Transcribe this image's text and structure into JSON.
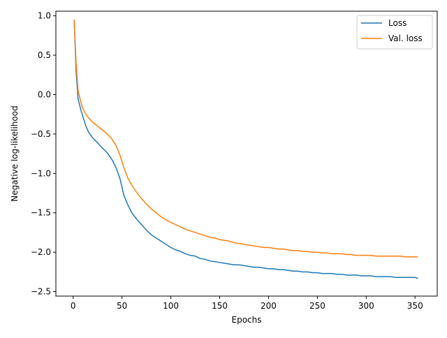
{
  "chart_data": {
    "type": "line",
    "title": "",
    "xlabel": "Epochs",
    "ylabel": "Negative log-likelihood",
    "xlim": [
      -17.7,
      372.7
    ],
    "ylim": [
      -2.557,
      1.059
    ],
    "x_ticks": [
      0,
      50,
      100,
      150,
      200,
      250,
      300,
      350
    ],
    "y_ticks": [
      1.0,
      0.5,
      0.0,
      -0.5,
      -1.0,
      -1.5,
      -2.0,
      -2.5
    ],
    "x_tick_labels": [
      "0",
      "50",
      "100",
      "150",
      "200",
      "250",
      "300",
      "350"
    ],
    "y_tick_labels": [
      "1.0",
      "0.5",
      "0.0",
      "−0.5",
      "−1.0",
      "−1.5",
      "−2.0",
      "−2.5"
    ],
    "grid": false,
    "legend_position": "top-right",
    "series": [
      {
        "name": "Loss",
        "color": "#1f77b4",
        "points": [
          [
            1,
            0.95
          ],
          [
            3,
            0.3
          ],
          [
            5,
            -0.05
          ],
          [
            8,
            -0.2
          ],
          [
            10,
            -0.28
          ],
          [
            13,
            -0.4
          ],
          [
            16,
            -0.48
          ],
          [
            20,
            -0.55
          ],
          [
            25,
            -0.61
          ],
          [
            30,
            -0.68
          ],
          [
            35,
            -0.74
          ],
          [
            40,
            -0.83
          ],
          [
            44,
            -0.93
          ],
          [
            48,
            -1.07
          ],
          [
            52,
            -1.28
          ],
          [
            56,
            -1.4
          ],
          [
            60,
            -1.5
          ],
          [
            65,
            -1.58
          ],
          [
            70,
            -1.65
          ],
          [
            75,
            -1.72
          ],
          [
            80,
            -1.78
          ],
          [
            85,
            -1.82
          ],
          [
            90,
            -1.86
          ],
          [
            95,
            -1.9
          ],
          [
            100,
            -1.94
          ],
          [
            105,
            -1.97
          ],
          [
            110,
            -1.99
          ],
          [
            115,
            -2.02
          ],
          [
            120,
            -2.04
          ],
          [
            125,
            -2.05
          ],
          [
            130,
            -2.08
          ],
          [
            135,
            -2.09
          ],
          [
            140,
            -2.11
          ],
          [
            145,
            -2.12
          ],
          [
            150,
            -2.13
          ],
          [
            155,
            -2.14
          ],
          [
            160,
            -2.15
          ],
          [
            165,
            -2.16
          ],
          [
            170,
            -2.16
          ],
          [
            175,
            -2.17
          ],
          [
            180,
            -2.18
          ],
          [
            185,
            -2.19
          ],
          [
            190,
            -2.19
          ],
          [
            195,
            -2.2
          ],
          [
            200,
            -2.21
          ],
          [
            205,
            -2.21
          ],
          [
            210,
            -2.22
          ],
          [
            215,
            -2.22
          ],
          [
            220,
            -2.23
          ],
          [
            225,
            -2.24
          ],
          [
            230,
            -2.24
          ],
          [
            235,
            -2.25
          ],
          [
            240,
            -2.25
          ],
          [
            245,
            -2.26
          ],
          [
            250,
            -2.26
          ],
          [
            255,
            -2.27
          ],
          [
            260,
            -2.27
          ],
          [
            265,
            -2.27
          ],
          [
            270,
            -2.28
          ],
          [
            275,
            -2.28
          ],
          [
            280,
            -2.29
          ],
          [
            285,
            -2.29
          ],
          [
            290,
            -2.29
          ],
          [
            295,
            -2.3
          ],
          [
            300,
            -2.3
          ],
          [
            305,
            -2.3
          ],
          [
            310,
            -2.31
          ],
          [
            315,
            -2.31
          ],
          [
            320,
            -2.31
          ],
          [
            325,
            -2.31
          ],
          [
            330,
            -2.32
          ],
          [
            335,
            -2.32
          ],
          [
            340,
            -2.32
          ],
          [
            345,
            -2.32
          ],
          [
            350,
            -2.32
          ],
          [
            353,
            -2.33
          ]
        ]
      },
      {
        "name": "Val. loss",
        "color": "#ff7f0e",
        "points": [
          [
            1,
            0.95
          ],
          [
            3,
            0.4
          ],
          [
            5,
            0.05
          ],
          [
            8,
            -0.1
          ],
          [
            10,
            -0.18
          ],
          [
            13,
            -0.25
          ],
          [
            16,
            -0.3
          ],
          [
            20,
            -0.35
          ],
          [
            25,
            -0.4
          ],
          [
            30,
            -0.45
          ],
          [
            35,
            -0.5
          ],
          [
            40,
            -0.57
          ],
          [
            44,
            -0.65
          ],
          [
            48,
            -0.77
          ],
          [
            52,
            -0.93
          ],
          [
            56,
            -1.06
          ],
          [
            60,
            -1.15
          ],
          [
            65,
            -1.24
          ],
          [
            70,
            -1.32
          ],
          [
            75,
            -1.39
          ],
          [
            80,
            -1.45
          ],
          [
            85,
            -1.5
          ],
          [
            90,
            -1.55
          ],
          [
            95,
            -1.59
          ],
          [
            100,
            -1.62
          ],
          [
            105,
            -1.65
          ],
          [
            110,
            -1.68
          ],
          [
            115,
            -1.71
          ],
          [
            120,
            -1.73
          ],
          [
            125,
            -1.75
          ],
          [
            130,
            -1.77
          ],
          [
            135,
            -1.79
          ],
          [
            140,
            -1.81
          ],
          [
            145,
            -1.82
          ],
          [
            150,
            -1.84
          ],
          [
            155,
            -1.85
          ],
          [
            160,
            -1.86
          ],
          [
            165,
            -1.88
          ],
          [
            170,
            -1.89
          ],
          [
            175,
            -1.9
          ],
          [
            180,
            -1.91
          ],
          [
            185,
            -1.92
          ],
          [
            190,
            -1.93
          ],
          [
            195,
            -1.94
          ],
          [
            200,
            -1.94
          ],
          [
            205,
            -1.95
          ],
          [
            210,
            -1.96
          ],
          [
            215,
            -1.96
          ],
          [
            220,
            -1.97
          ],
          [
            225,
            -1.98
          ],
          [
            230,
            -1.98
          ],
          [
            235,
            -1.99
          ],
          [
            240,
            -1.99
          ],
          [
            245,
            -2.0
          ],
          [
            250,
            -2.0
          ],
          [
            255,
            -2.01
          ],
          [
            260,
            -2.01
          ],
          [
            265,
            -2.02
          ],
          [
            270,
            -2.02
          ],
          [
            275,
            -2.02
          ],
          [
            280,
            -2.03
          ],
          [
            285,
            -2.03
          ],
          [
            290,
            -2.04
          ],
          [
            295,
            -2.04
          ],
          [
            300,
            -2.04
          ],
          [
            305,
            -2.04
          ],
          [
            310,
            -2.05
          ],
          [
            315,
            -2.05
          ],
          [
            320,
            -2.05
          ],
          [
            325,
            -2.05
          ],
          [
            330,
            -2.05
          ],
          [
            335,
            -2.05
          ],
          [
            340,
            -2.06
          ],
          [
            345,
            -2.06
          ],
          [
            350,
            -2.06
          ],
          [
            353,
            -2.06
          ]
        ]
      }
    ]
  }
}
